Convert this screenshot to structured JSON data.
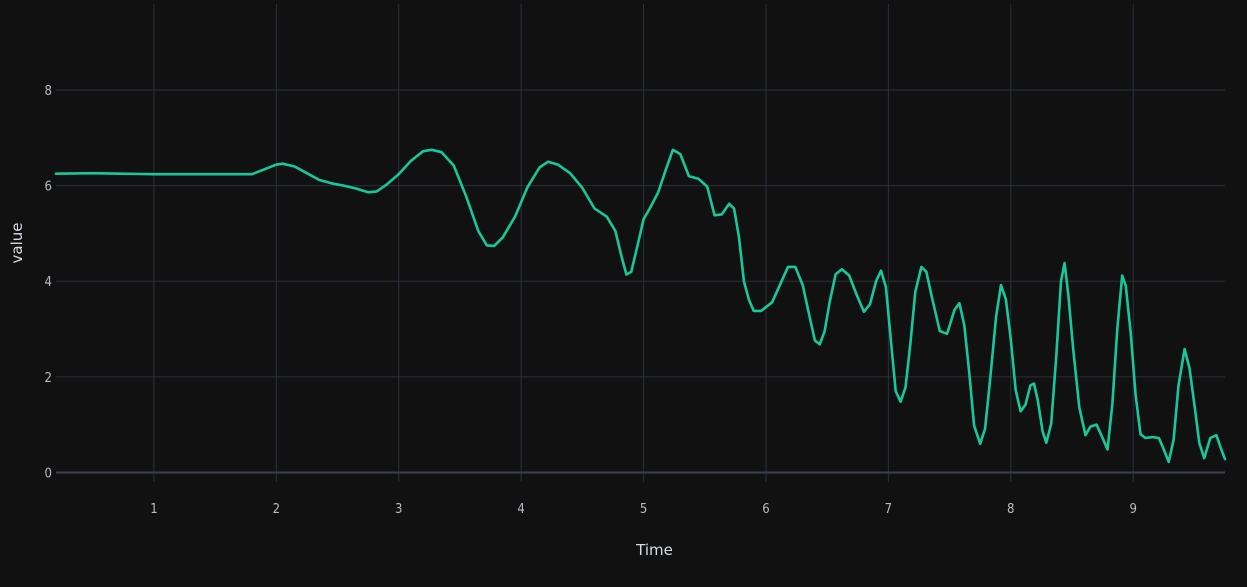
{
  "chart_data": {
    "type": "line",
    "xlabel": "Time",
    "ylabel": "value",
    "xlim": [
      0.2,
      9.75
    ],
    "ylim": [
      -0.2,
      9.8
    ],
    "x_ticks": [
      1,
      2,
      3,
      4,
      5,
      6,
      7,
      8,
      9
    ],
    "y_ticks": [
      0,
      2,
      4,
      6,
      8
    ],
    "grid": true,
    "background_color": "#111111",
    "grid_color": "#2b313b",
    "series": [
      {
        "color": "#17c99a",
        "points": [
          [
            0.2,
            6.25
          ],
          [
            0.5,
            6.26
          ],
          [
            1.0,
            6.24
          ],
          [
            1.5,
            6.24
          ],
          [
            1.8,
            6.24
          ],
          [
            1.9,
            6.34
          ],
          [
            2.0,
            6.44
          ],
          [
            2.05,
            6.46
          ],
          [
            2.15,
            6.4
          ],
          [
            2.25,
            6.26
          ],
          [
            2.35,
            6.12
          ],
          [
            2.45,
            6.05
          ],
          [
            2.55,
            6.0
          ],
          [
            2.65,
            5.94
          ],
          [
            2.75,
            5.86
          ],
          [
            2.82,
            5.88
          ],
          [
            2.9,
            6.02
          ],
          [
            3.0,
            6.24
          ],
          [
            3.1,
            6.52
          ],
          [
            3.2,
            6.72
          ],
          [
            3.27,
            6.75
          ],
          [
            3.35,
            6.7
          ],
          [
            3.45,
            6.42
          ],
          [
            3.55,
            5.78
          ],
          [
            3.65,
            5.05
          ],
          [
            3.72,
            4.75
          ],
          [
            3.78,
            4.74
          ],
          [
            3.85,
            4.92
          ],
          [
            3.95,
            5.35
          ],
          [
            4.05,
            5.96
          ],
          [
            4.15,
            6.38
          ],
          [
            4.22,
            6.5
          ],
          [
            4.3,
            6.44
          ],
          [
            4.4,
            6.26
          ],
          [
            4.5,
            5.95
          ],
          [
            4.6,
            5.52
          ],
          [
            4.7,
            5.35
          ],
          [
            4.77,
            5.05
          ],
          [
            4.82,
            4.52
          ],
          [
            4.86,
            4.14
          ],
          [
            4.9,
            4.2
          ],
          [
            4.96,
            4.85
          ],
          [
            5.0,
            5.3
          ],
          [
            5.05,
            5.52
          ],
          [
            5.12,
            5.86
          ],
          [
            5.18,
            6.32
          ],
          [
            5.24,
            6.75
          ],
          [
            5.3,
            6.66
          ],
          [
            5.37,
            6.2
          ],
          [
            5.45,
            6.14
          ],
          [
            5.52,
            5.98
          ],
          [
            5.58,
            5.38
          ],
          [
            5.64,
            5.4
          ],
          [
            5.7,
            5.62
          ],
          [
            5.74,
            5.52
          ],
          [
            5.78,
            4.92
          ],
          [
            5.82,
            4.0
          ],
          [
            5.86,
            3.62
          ],
          [
            5.9,
            3.38
          ],
          [
            5.96,
            3.38
          ],
          [
            6.05,
            3.56
          ],
          [
            6.12,
            3.96
          ],
          [
            6.18,
            4.3
          ],
          [
            6.24,
            4.3
          ],
          [
            6.3,
            3.92
          ],
          [
            6.36,
            3.22
          ],
          [
            6.4,
            2.76
          ],
          [
            6.44,
            2.68
          ],
          [
            6.48,
            2.96
          ],
          [
            6.52,
            3.56
          ],
          [
            6.57,
            4.15
          ],
          [
            6.62,
            4.25
          ],
          [
            6.68,
            4.12
          ],
          [
            6.74,
            3.72
          ],
          [
            6.8,
            3.36
          ],
          [
            6.85,
            3.52
          ],
          [
            6.9,
            4.0
          ],
          [
            6.94,
            4.22
          ],
          [
            6.98,
            3.88
          ],
          [
            7.02,
            2.78
          ],
          [
            7.06,
            1.7
          ],
          [
            7.1,
            1.48
          ],
          [
            7.14,
            1.78
          ],
          [
            7.18,
            2.7
          ],
          [
            7.22,
            3.78
          ],
          [
            7.27,
            4.3
          ],
          [
            7.31,
            4.2
          ],
          [
            7.36,
            3.62
          ],
          [
            7.42,
            2.96
          ],
          [
            7.48,
            2.9
          ],
          [
            7.54,
            3.4
          ],
          [
            7.58,
            3.54
          ],
          [
            7.62,
            3.08
          ],
          [
            7.66,
            2.1
          ],
          [
            7.7,
            0.98
          ],
          [
            7.75,
            0.6
          ],
          [
            7.79,
            0.92
          ],
          [
            7.83,
            1.92
          ],
          [
            7.88,
            3.26
          ],
          [
            7.92,
            3.92
          ],
          [
            7.96,
            3.62
          ],
          [
            8.0,
            2.78
          ],
          [
            8.04,
            1.72
          ],
          [
            8.08,
            1.28
          ],
          [
            8.12,
            1.42
          ],
          [
            8.16,
            1.82
          ],
          [
            8.19,
            1.86
          ],
          [
            8.22,
            1.52
          ],
          [
            8.26,
            0.86
          ],
          [
            8.29,
            0.62
          ],
          [
            8.33,
            1.02
          ],
          [
            8.37,
            2.38
          ],
          [
            8.41,
            4.0
          ],
          [
            8.44,
            4.38
          ],
          [
            8.47,
            3.72
          ],
          [
            8.51,
            2.58
          ],
          [
            8.56,
            1.36
          ],
          [
            8.61,
            0.78
          ],
          [
            8.65,
            0.96
          ],
          [
            8.7,
            1.0
          ],
          [
            8.75,
            0.72
          ],
          [
            8.79,
            0.48
          ],
          [
            8.83,
            1.44
          ],
          [
            8.87,
            3.0
          ],
          [
            8.91,
            4.12
          ],
          [
            8.94,
            3.9
          ],
          [
            8.98,
            2.92
          ],
          [
            9.02,
            1.62
          ],
          [
            9.06,
            0.8
          ],
          [
            9.1,
            0.72
          ],
          [
            9.16,
            0.74
          ],
          [
            9.21,
            0.72
          ],
          [
            9.25,
            0.48
          ],
          [
            9.29,
            0.22
          ],
          [
            9.33,
            0.68
          ],
          [
            9.37,
            1.82
          ],
          [
            9.42,
            2.58
          ],
          [
            9.46,
            2.18
          ],
          [
            9.5,
            1.42
          ],
          [
            9.54,
            0.62
          ],
          [
            9.58,
            0.3
          ],
          [
            9.63,
            0.72
          ],
          [
            9.68,
            0.78
          ],
          [
            9.72,
            0.48
          ],
          [
            9.75,
            0.28
          ]
        ]
      }
    ]
  }
}
